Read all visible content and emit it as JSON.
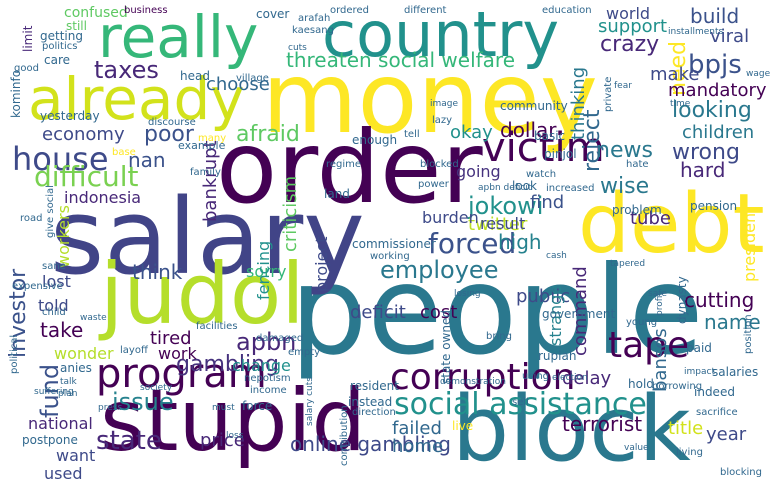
{
  "words": [
    {
      "text": "people",
      "color": "#2a788e"
    },
    {
      "text": "money",
      "color": "#fde725"
    },
    {
      "text": "salary",
      "color": "#414487"
    },
    {
      "text": "order",
      "color": "#440154"
    },
    {
      "text": "stupid",
      "color": "#440154"
    },
    {
      "text": "block",
      "color": "#2a788e"
    },
    {
      "text": "debt",
      "color": "#fde725"
    },
    {
      "text": "judol",
      "color": "#b5de2b"
    },
    {
      "text": "really",
      "color": "#35b779"
    },
    {
      "text": "country",
      "color": "#21918c"
    },
    {
      "text": "already",
      "color": "#d2e21b"
    },
    {
      "text": "victim",
      "color": "#440154"
    },
    {
      "text": "social assistance",
      "color": "#21918c"
    },
    {
      "text": "program",
      "color": "#440154"
    },
    {
      "text": "corruption",
      "color": "#440154"
    },
    {
      "text": "tape",
      "color": "#440154"
    },
    {
      "text": "house",
      "color": "#3e4a89"
    },
    {
      "text": "difficult",
      "color": "#7ad151"
    },
    {
      "text": "taxes",
      "color": "#482878"
    },
    {
      "text": "threaten social welfare",
      "color": "#35b779"
    },
    {
      "text": "forced",
      "color": "#3b528b"
    },
    {
      "text": "employee",
      "color": "#2a788e"
    },
    {
      "text": "jokowi",
      "color": "#21918c"
    },
    {
      "text": "fund",
      "color": "#3b528b"
    },
    {
      "text": "investor",
      "color": "#3b528b"
    },
    {
      "text": "bpjs",
      "color": "#3b528b"
    },
    {
      "text": "gambling",
      "color": "#46327e"
    },
    {
      "text": "apbn",
      "color": "#482878"
    },
    {
      "text": "issue",
      "color": "#26828e"
    },
    {
      "text": "state",
      "color": "#482878"
    },
    {
      "text": "online gambling",
      "color": "#3e4a89"
    },
    {
      "text": "crazy",
      "color": "#482878"
    },
    {
      "text": "poor",
      "color": "#3b528b"
    },
    {
      "text": "looking",
      "color": "#2a788e"
    },
    {
      "text": "news",
      "color": "#2a788e"
    },
    {
      "text": "wrong",
      "color": "#3e4a89"
    },
    {
      "text": "wise",
      "color": "#2a788e"
    },
    {
      "text": "reject",
      "color": "#31688e"
    },
    {
      "text": "nan",
      "color": "#3b528b"
    },
    {
      "text": "afraid",
      "color": "#5ec962"
    },
    {
      "text": "economy",
      "color": "#3e4a89"
    },
    {
      "text": "choose",
      "color": "#31688e"
    },
    {
      "text": "build",
      "color": "#3b528b"
    },
    {
      "text": "support",
      "color": "#21918c"
    },
    {
      "text": "world",
      "color": "#3e4a89"
    },
    {
      "text": "need",
      "color": "#fde725"
    },
    {
      "text": "make",
      "color": "#3e4a89"
    },
    {
      "text": "mandatory",
      "color": "#440154"
    },
    {
      "text": "viral",
      "color": "#3e4a89"
    },
    {
      "text": "children",
      "color": "#2a788e"
    },
    {
      "text": "dollar",
      "color": "#440154"
    },
    {
      "text": "okay",
      "color": "#21918c"
    },
    {
      "text": "thinking",
      "color": "#2a788e"
    },
    {
      "text": "hard",
      "color": "#482878"
    },
    {
      "text": "going",
      "color": "#46327e"
    },
    {
      "text": "twitter",
      "color": "#bddf26"
    },
    {
      "text": "find",
      "color": "#3b528b"
    },
    {
      "text": "high",
      "color": "#26828e"
    },
    {
      "text": "result",
      "color": "#3e4a89"
    },
    {
      "text": "burden",
      "color": "#3e4a89"
    },
    {
      "text": "bankrupt",
      "color": "#482878"
    },
    {
      "text": "criticism",
      "color": "#5ec962"
    },
    {
      "text": "indonesia",
      "color": "#482878"
    },
    {
      "text": "workers",
      "color": "#b5de2b"
    },
    {
      "text": "think",
      "color": "#3b528b"
    },
    {
      "text": "sorry",
      "color": "#35b779"
    },
    {
      "text": "lost",
      "color": "#3e4a89"
    },
    {
      "text": "told",
      "color": "#3e4a89"
    },
    {
      "text": "take",
      "color": "#440154"
    },
    {
      "text": "tired",
      "color": "#440154"
    },
    {
      "text": "wonder",
      "color": "#b5de2b"
    },
    {
      "text": "work",
      "color": "#440154"
    },
    {
      "text": "change",
      "color": "#21918c"
    },
    {
      "text": "fencing",
      "color": "#21918c"
    },
    {
      "text": "project",
      "color": "#3e4a89"
    },
    {
      "text": "deficit",
      "color": "#3e4a89"
    },
    {
      "text": "cost",
      "color": "#440154"
    },
    {
      "text": "public",
      "color": "#3e4a89"
    },
    {
      "text": "cutting",
      "color": "#440154"
    },
    {
      "text": "name",
      "color": "#2a788e"
    },
    {
      "text": "delay",
      "color": "#482878"
    },
    {
      "text": "command",
      "color": "#482878"
    },
    {
      "text": "strange",
      "color": "#26828e"
    },
    {
      "text": "bansos",
      "color": "#31688e"
    },
    {
      "text": "president",
      "color": "#fde725"
    },
    {
      "text": "title",
      "color": "#d2e21b"
    },
    {
      "text": "year",
      "color": "#3e4a89"
    },
    {
      "text": "terrorist",
      "color": "#440154"
    },
    {
      "text": "failed",
      "color": "#31688e"
    },
    {
      "text": "home",
      "color": "#31688e"
    },
    {
      "text": "national",
      "color": "#482878"
    },
    {
      "text": "want",
      "color": "#3e4a89"
    },
    {
      "text": "used",
      "color": "#3e4a89"
    },
    {
      "text": "price",
      "color": "#482878"
    },
    {
      "text": "tube",
      "color": "#482878"
    },
    {
      "text": "limit",
      "color": "#482878"
    },
    {
      "text": "confused",
      "color": "#5ec962"
    },
    {
      "text": "still",
      "color": "#5ec962"
    },
    {
      "text": "getting",
      "color": "#31688e"
    },
    {
      "text": "politics",
      "color": "#31688e"
    },
    {
      "text": "care",
      "color": "#31688e"
    },
    {
      "text": "good",
      "color": "#31688e"
    },
    {
      "text": "kominfo",
      "color": "#31688e"
    },
    {
      "text": "business",
      "color": "#440154"
    },
    {
      "text": "yesterday",
      "color": "#31688e"
    },
    {
      "text": "cover",
      "color": "#31688e"
    },
    {
      "text": "arafah",
      "color": "#31688e"
    },
    {
      "text": "kaesang",
      "color": "#31688e"
    },
    {
      "text": "ordered",
      "color": "#31688e"
    },
    {
      "text": "different",
      "color": "#31688e"
    },
    {
      "text": "education",
      "color": "#31688e"
    },
    {
      "text": "installments",
      "color": "#31688e"
    },
    {
      "text": "wage",
      "color": "#31688e"
    },
    {
      "text": "head",
      "color": "#31688e"
    },
    {
      "text": "village",
      "color": "#31688e"
    },
    {
      "text": "cuts",
      "color": "#31688e"
    },
    {
      "text": "fear",
      "color": "#31688e"
    },
    {
      "text": "time",
      "color": "#31688e"
    },
    {
      "text": "community",
      "color": "#31688e"
    },
    {
      "text": "discourse",
      "color": "#31688e"
    },
    {
      "text": "image",
      "color": "#31688e"
    },
    {
      "text": "lazy",
      "color": "#31688e"
    },
    {
      "text": "private",
      "color": "#31688e"
    },
    {
      "text": "many",
      "color": "#fde725"
    },
    {
      "text": "example",
      "color": "#31688e"
    },
    {
      "text": "base",
      "color": "#fde725"
    },
    {
      "text": "family",
      "color": "#31688e"
    },
    {
      "text": "enough",
      "color": "#31688e"
    },
    {
      "text": "tell",
      "color": "#31688e"
    },
    {
      "text": "basic",
      "color": "#31688e"
    },
    {
      "text": "watch",
      "color": "#31688e"
    },
    {
      "text": "pinjol",
      "color": "#31688e"
    },
    {
      "text": "regime",
      "color": "#31688e"
    },
    {
      "text": "blocked",
      "color": "#31688e"
    },
    {
      "text": "hate",
      "color": "#31688e"
    },
    {
      "text": "power",
      "color": "#31688e"
    },
    {
      "text": "look",
      "color": "#31688e"
    },
    {
      "text": "increased",
      "color": "#31688e"
    },
    {
      "text": "land",
      "color": "#31688e"
    },
    {
      "text": "apbn deficit",
      "color": "#31688e"
    },
    {
      "text": "problem",
      "color": "#31688e"
    },
    {
      "text": "pension",
      "color": "#31688e"
    },
    {
      "text": "road",
      "color": "#31688e"
    },
    {
      "text": "give social",
      "color": "#31688e"
    },
    {
      "text": "commissioner",
      "color": "#31688e"
    },
    {
      "text": "working",
      "color": "#31688e"
    },
    {
      "text": "cash",
      "color": "#31688e"
    },
    {
      "text": "tapered",
      "color": "#31688e"
    },
    {
      "text": "sane",
      "color": "#31688e"
    },
    {
      "text": "expensive",
      "color": "#31688e"
    },
    {
      "text": "child",
      "color": "#31688e"
    },
    {
      "text": "waste",
      "color": "#31688e"
    },
    {
      "text": "losing",
      "color": "#31688e"
    },
    {
      "text": "government",
      "color": "#31688e"
    },
    {
      "text": "safe",
      "color": "#31688e"
    },
    {
      "text": "dynasty",
      "color": "#31688e"
    },
    {
      "text": "young",
      "color": "#31688e"
    },
    {
      "text": "profit",
      "color": "#31688e"
    },
    {
      "text": "position",
      "color": "#31688e"
    },
    {
      "text": "facilities",
      "color": "#31688e"
    },
    {
      "text": "bring",
      "color": "#31688e"
    },
    {
      "text": "political",
      "color": "#31688e"
    },
    {
      "text": "layoff",
      "color": "#31688e"
    },
    {
      "text": "damaged",
      "color": "#31688e"
    },
    {
      "text": "empty",
      "color": "#31688e"
    },
    {
      "text": "rupiah",
      "color": "#31688e"
    },
    {
      "text": "paid",
      "color": "#31688e"
    },
    {
      "text": "salaries",
      "color": "#31688e"
    },
    {
      "text": "anies",
      "color": "#31688e"
    },
    {
      "text": "talk",
      "color": "#31688e"
    },
    {
      "text": "plan",
      "color": "#31688e"
    },
    {
      "text": "suffering",
      "color": "#31688e"
    },
    {
      "text": "society",
      "color": "#31688e"
    },
    {
      "text": "nepotism",
      "color": "#31688e"
    },
    {
      "text": "income",
      "color": "#31688e"
    },
    {
      "text": "force",
      "color": "#31688e"
    },
    {
      "text": "resident",
      "color": "#31688e"
    },
    {
      "text": "demonstration",
      "color": "#31688e"
    },
    {
      "text": "using",
      "color": "#31688e"
    },
    {
      "text": "election",
      "color": "#31688e"
    },
    {
      "text": "hold",
      "color": "#31688e"
    },
    {
      "text": "impact",
      "color": "#31688e"
    },
    {
      "text": "borrowing",
      "color": "#31688e"
    },
    {
      "text": "indeed",
      "color": "#31688e"
    },
    {
      "text": "press",
      "color": "#31688e"
    },
    {
      "text": "must",
      "color": "#31688e"
    },
    {
      "text": "instead",
      "color": "#31688e"
    },
    {
      "text": "direction",
      "color": "#31688e"
    },
    {
      "text": "loss",
      "color": "#31688e"
    },
    {
      "text": "postpone",
      "color": "#31688e"
    },
    {
      "text": "salary cuts",
      "color": "#31688e"
    },
    {
      "text": "contribution",
      "color": "#31688e"
    },
    {
      "text": "state owned",
      "color": "#31688e"
    },
    {
      "text": "sell",
      "color": "#31688e"
    },
    {
      "text": "live",
      "color": "#fde725"
    },
    {
      "text": "sacrifice",
      "color": "#31688e"
    },
    {
      "text": "value",
      "color": "#31688e"
    },
    {
      "text": "living",
      "color": "#31688e"
    },
    {
      "text": "blocking",
      "color": "#31688e"
    }
  ]
}
